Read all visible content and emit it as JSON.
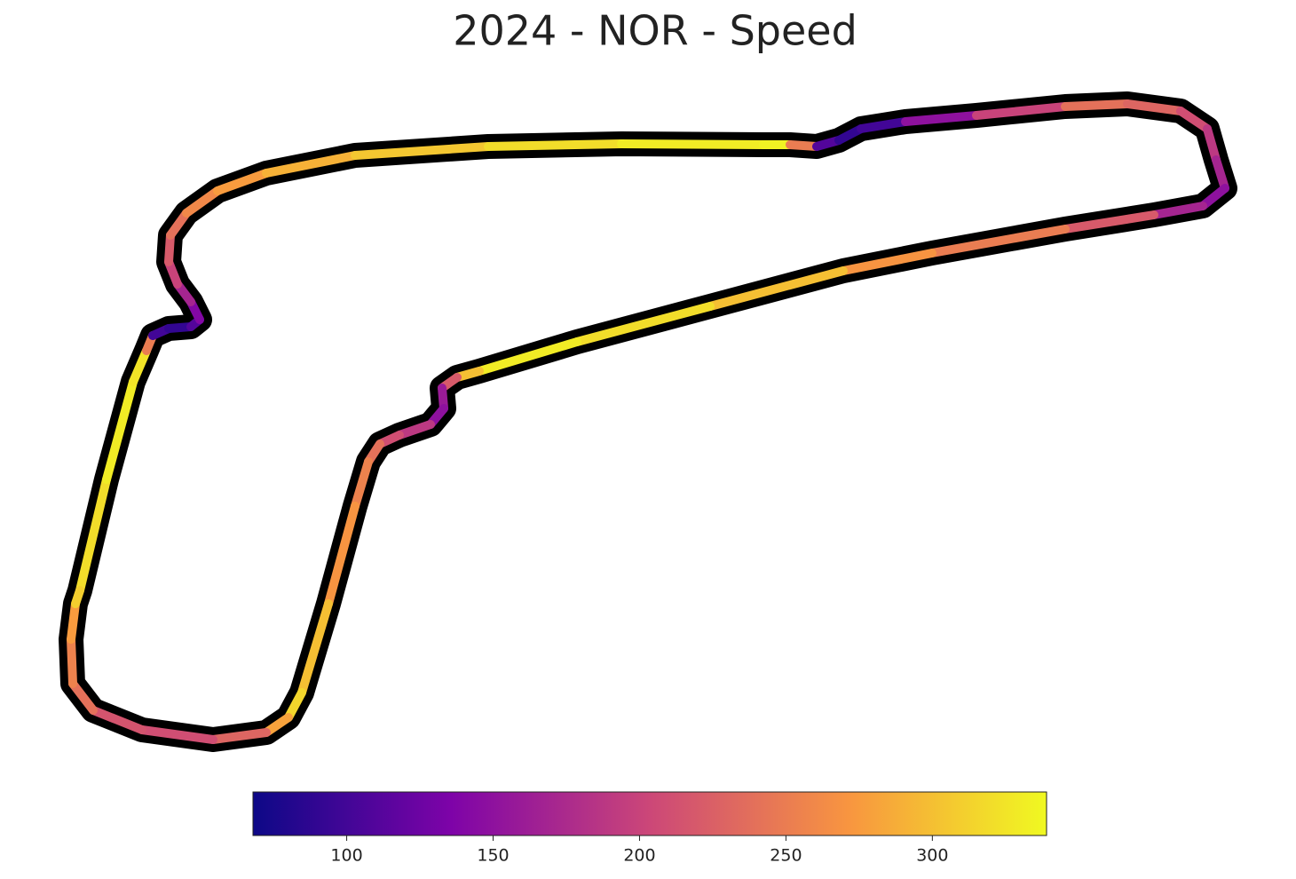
{
  "chart_data": {
    "type": "track",
    "title": "2024 - NOR - Speed",
    "colormap": "plasma",
    "x": [
      90,
      120,
      150,
      165,
      172,
      190,
      215,
      225,
      215,
      200,
      190,
      192,
      210,
      245,
      300,
      400,
      550,
      700,
      860,
      890,
      920,
      945,
      970,
      1020,
      1100,
      1200,
      1270,
      1330,
      1360,
      1370,
      1380,
      1355,
      1300,
      1200,
      1050,
      950,
      800,
      650,
      540,
      515,
      498,
      500,
      485,
      450,
      428,
      415,
      400,
      370,
      340,
      325,
      300,
      240,
      160,
      105,
      82,
      80,
      85
    ],
    "y": [
      665,
      540,
      430,
      395,
      378,
      370,
      368,
      360,
      340,
      320,
      295,
      265,
      240,
      215,
      195,
      175,
      165,
      162,
      163,
      163,
      165,
      158,
      145,
      137,
      130,
      120,
      117,
      125,
      145,
      180,
      212,
      232,
      242,
      258,
      285,
      305,
      345,
      385,
      418,
      425,
      437,
      460,
      478,
      490,
      500,
      520,
      570,
      680,
      780,
      808,
      825,
      833,
      822,
      800,
      770,
      720,
      680
    ],
    "values": [
      320,
      330,
      325,
      250,
      100,
      90,
      110,
      140,
      170,
      200,
      220,
      240,
      260,
      275,
      290,
      305,
      320,
      330,
      335,
      250,
      110,
      90,
      100,
      150,
      200,
      240,
      230,
      210,
      190,
      170,
      150,
      170,
      220,
      250,
      270,
      300,
      320,
      330,
      300,
      220,
      160,
      150,
      190,
      210,
      240,
      255,
      270,
      300,
      315,
      280,
      230,
      210,
      215,
      240,
      255,
      275,
      310
    ],
    "clim": [
      68,
      339
    ],
    "cticks": [
      100,
      150,
      200,
      250,
      300
    ]
  }
}
